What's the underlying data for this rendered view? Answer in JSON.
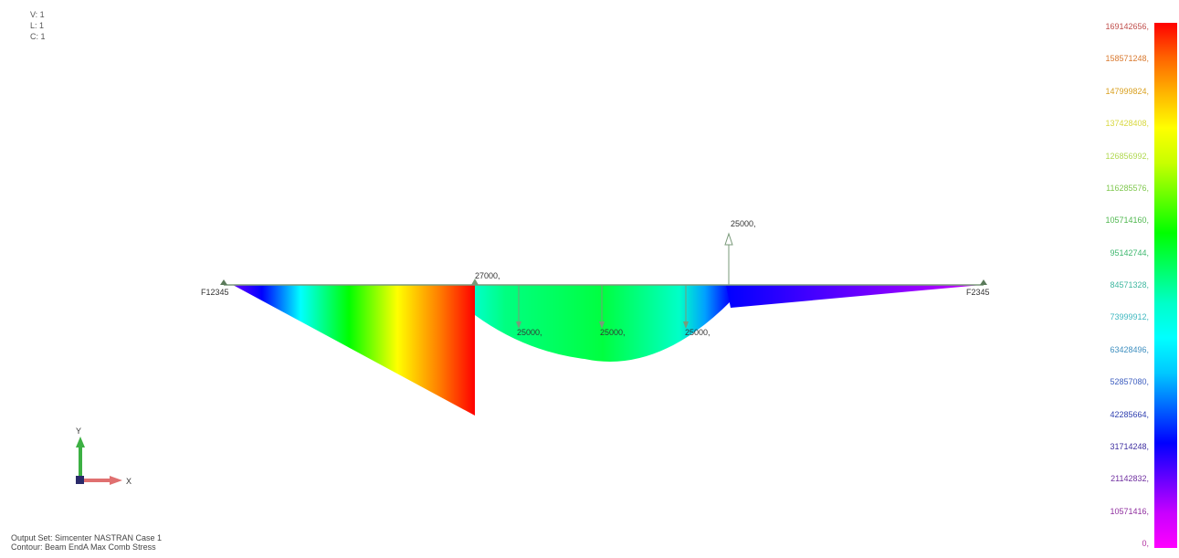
{
  "view_info": {
    "v": "V: 1",
    "l": "L: 1",
    "c": "C: 1"
  },
  "supports": [
    {
      "label": "F12345"
    },
    {
      "label": "F2345"
    }
  ],
  "loads": [
    {
      "label": "27000,"
    },
    {
      "label": "25000,"
    },
    {
      "label": "25000,"
    },
    {
      "label": "25000,"
    },
    {
      "label": "25000,"
    }
  ],
  "axes": {
    "x_label": "X",
    "y_label": "Y"
  },
  "legend": {
    "colors": [
      "#ff0000",
      "#ff6400",
      "#ffb400",
      "#ffff00",
      "#c8ff00",
      "#64ff00",
      "#00ff00",
      "#00ff64",
      "#00ffc8",
      "#00ffff",
      "#00c8ff",
      "#0064ff",
      "#0000ff",
      "#6400ff",
      "#c800ff",
      "#ff00ff"
    ],
    "labels": [
      "169142656,",
      "158571248,",
      "147999824,",
      "137428408,",
      "126856992,",
      "116285576,",
      "105714160,",
      "95142744,",
      "84571328,",
      "73999912,",
      "63428496,",
      "52857080,",
      "42285664,",
      "31714248,",
      "21142832,",
      "10571416,",
      "0,"
    ],
    "label_colors": [
      "#c0504d",
      "#d97a30",
      "#d9a020",
      "#d8d840",
      "#b0d850",
      "#80c850",
      "#50b850",
      "#40b870",
      "#40b8a0",
      "#40b8c0",
      "#4090c0",
      "#4060c0",
      "#3040b0",
      "#4030a0",
      "#7030a0",
      "#9030a0",
      "#b030a0"
    ]
  },
  "output_info": {
    "output_set": "Output Set: Simcenter NASTRAN Case 1",
    "contour": "Contour: Beam EndA Max Comb Stress"
  }
}
